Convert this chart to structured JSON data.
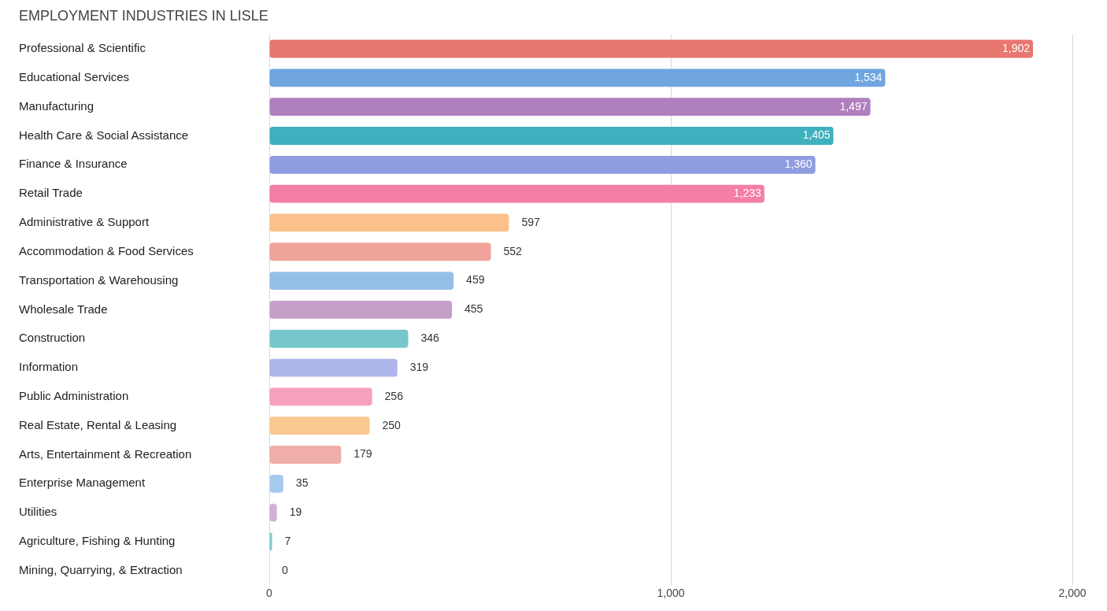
{
  "chart_data": {
    "type": "bar",
    "orientation": "horizontal",
    "title": "EMPLOYMENT INDUSTRIES IN LISLE",
    "categories": [
      "Professional & Scientific",
      "Educational Services",
      "Manufacturing",
      "Health Care & Social Assistance",
      "Finance & Insurance",
      "Retail Trade",
      "Administrative & Support",
      "Accommodation & Food Services",
      "Transportation & Warehousing",
      "Wholesale Trade",
      "Construction",
      "Information",
      "Public Administration",
      "Real Estate, Rental & Leasing",
      "Arts, Entertainment & Recreation",
      "Enterprise Management",
      "Utilities",
      "Agriculture, Fishing & Hunting",
      "Mining, Quarrying, & Extraction"
    ],
    "values": [
      1902,
      1534,
      1497,
      1405,
      1360,
      1233,
      597,
      552,
      459,
      455,
      346,
      319,
      256,
      250,
      179,
      35,
      19,
      7,
      0
    ],
    "value_labels": [
      "1,902",
      "1,534",
      "1,497",
      "1,405",
      "1,360",
      "1,233",
      "597",
      "552",
      "459",
      "455",
      "346",
      "319",
      "256",
      "250",
      "179",
      "35",
      "19",
      "7",
      "0"
    ],
    "colors": [
      "#e8776f",
      "#6fa6e0",
      "#b07fbd",
      "#3fb0bd",
      "#8e9de0",
      "#f47ea4",
      "#fbc18a",
      "#f0a39b",
      "#96bfe8",
      "#c4a0c9",
      "#77c6cc",
      "#adb5ea",
      "#f6a0bf",
      "#fbc890",
      "#f0aeaa",
      "#a8c9ee",
      "#cfb3d4",
      "#7dcdd2",
      "#b9c1ee"
    ],
    "xlim": [
      0,
      2000
    ],
    "xticks": [
      {
        "value": 0,
        "label": "0"
      },
      {
        "value": 1000,
        "label": "1,000"
      },
      {
        "value": 2000,
        "label": "2,000"
      }
    ],
    "grid": "x",
    "legend": false
  }
}
